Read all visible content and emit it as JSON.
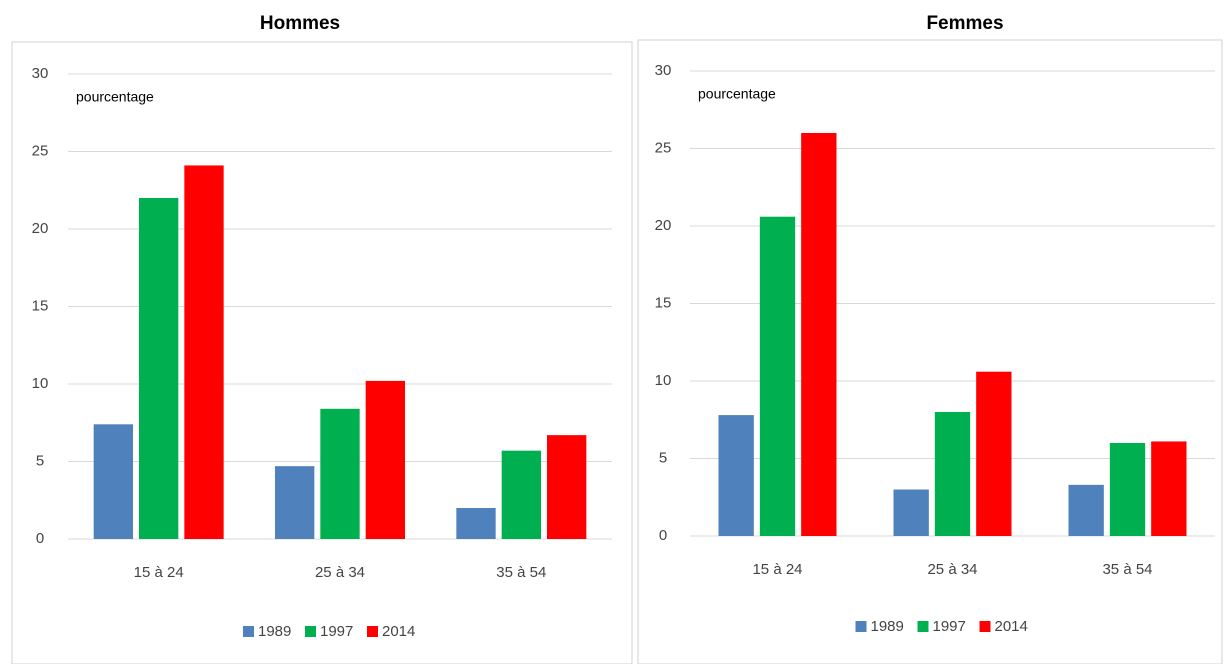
{
  "chart_data": [
    {
      "type": "bar",
      "title": "Hommes",
      "annotation": "pourcentage",
      "categories": [
        "15 à 24",
        "25 à 34",
        "35 à 54"
      ],
      "series": [
        {
          "name": "1989",
          "color": "#4f81bd",
          "values": [
            7.4,
            4.7,
            2.0
          ]
        },
        {
          "name": "1997",
          "color": "#00b050",
          "values": [
            22,
            8.4,
            5.7
          ]
        },
        {
          "name": "2014",
          "color": "#ff0000",
          "values": [
            24.1,
            10.2,
            6.7
          ]
        }
      ],
      "ylim": [
        0,
        30
      ],
      "yticks": [
        0,
        5,
        10,
        15,
        20,
        25,
        30
      ],
      "grid": true,
      "legend": "bottom"
    },
    {
      "type": "bar",
      "title": "Femmes",
      "annotation": "pourcentage",
      "categories": [
        "15 à 24",
        "25 à 34",
        "35 à 54"
      ],
      "series": [
        {
          "name": "1989",
          "color": "#4f81bd",
          "values": [
            7.8,
            3.0,
            3.3
          ]
        },
        {
          "name": "1997",
          "color": "#00b050",
          "values": [
            20.6,
            8.0,
            6.0
          ]
        },
        {
          "name": "2014",
          "color": "#ff0000",
          "values": [
            26,
            10.6,
            6.1
          ]
        }
      ],
      "ylim": [
        0,
        30
      ],
      "yticks": [
        0,
        5,
        10,
        15,
        20,
        25,
        30
      ],
      "grid": true,
      "legend": "bottom"
    }
  ]
}
